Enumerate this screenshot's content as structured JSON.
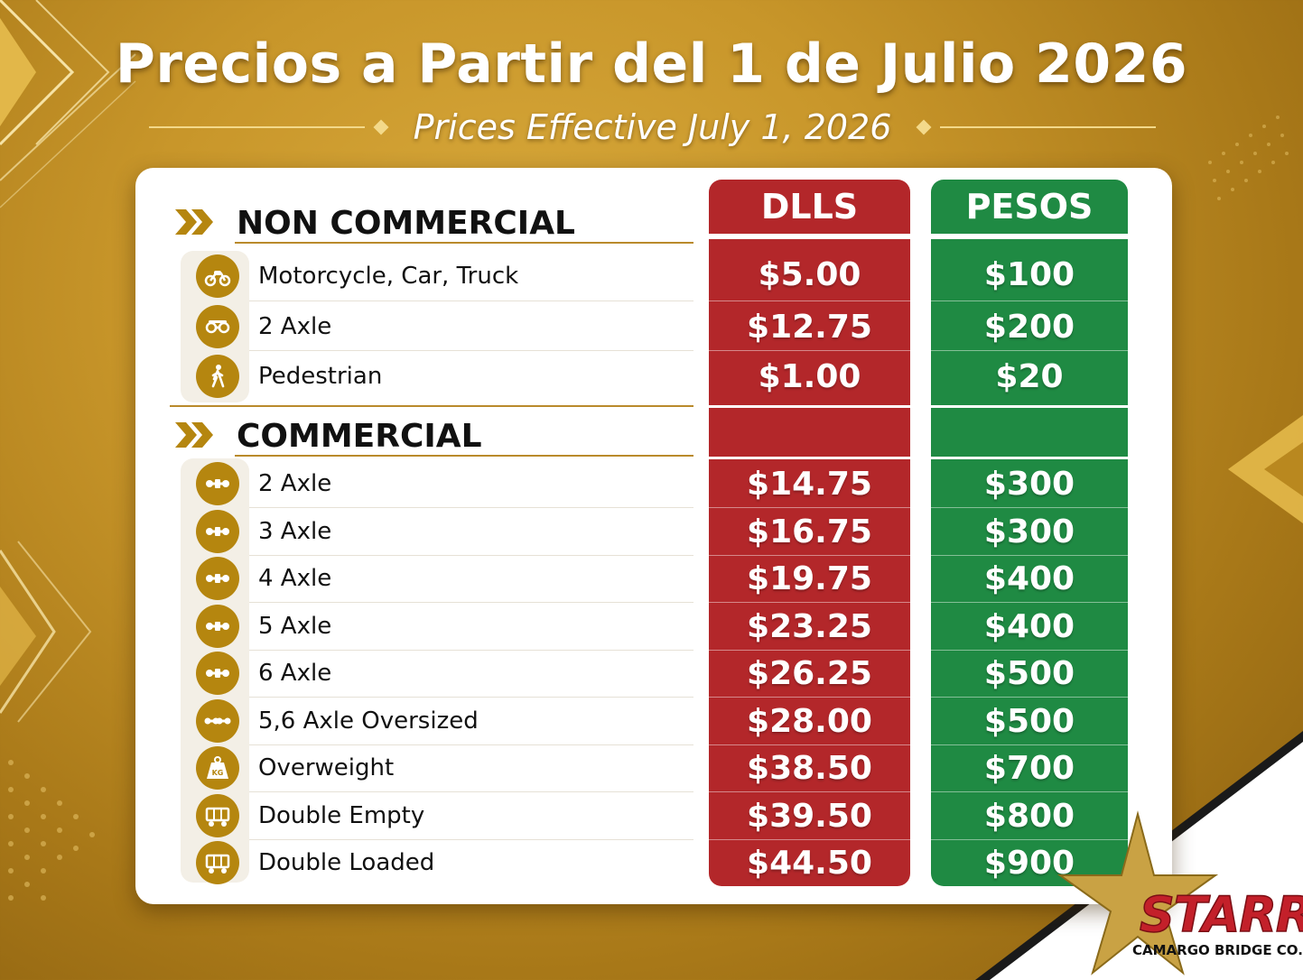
{
  "header": {
    "title": "Precios a Partir del 1 de Julio 2026",
    "subtitle": "Prices Effective July 1, 2026"
  },
  "columns": {
    "usd": "DLLS",
    "mxn": "PESOS"
  },
  "colors": {
    "background_gold": "#c8962a",
    "usd_column": "#b3272a",
    "mxn_column": "#1f8a43",
    "icon_gold": "#b5860f",
    "logo_red": "#c3202a"
  },
  "sections": {
    "non_commercial": {
      "label": "NON COMMERCIAL",
      "rows": [
        {
          "icon": "motorcycle-icon",
          "label": "Motorcycle, Car, Truck",
          "usd": "$5.00",
          "mxn": "$100"
        },
        {
          "icon": "axle-icon",
          "label": "2 Axle",
          "usd": "$12.75",
          "mxn": "$200"
        },
        {
          "icon": "pedestrian-icon",
          "label": "Pedestrian",
          "usd": "$1.00",
          "mxn": "$20"
        }
      ]
    },
    "commercial": {
      "label": "COMMERCIAL",
      "rows": [
        {
          "icon": "truck-axle-icon",
          "label": "2 Axle",
          "usd": "$14.75",
          "mxn": "$300"
        },
        {
          "icon": "truck-axle-icon",
          "label": "3 Axle",
          "usd": "$16.75",
          "mxn": "$300"
        },
        {
          "icon": "truck-axle-icon",
          "label": "4 Axle",
          "usd": "$19.75",
          "mxn": "$400"
        },
        {
          "icon": "truck-axle-icon",
          "label": "5 Axle",
          "usd": "$23.25",
          "mxn": "$400"
        },
        {
          "icon": "truck-axle-icon",
          "label": "6 Axle",
          "usd": "$26.25",
          "mxn": "$500"
        },
        {
          "icon": "oversized-axle-icon",
          "label": "5,6 Axle Oversized",
          "usd": "$28.00",
          "mxn": "$500"
        },
        {
          "icon": "weight-kg-icon",
          "label": "Overweight",
          "usd": "$38.50",
          "mxn": "$700"
        },
        {
          "icon": "trailer-icon",
          "label": "Double Empty",
          "usd": "$39.50",
          "mxn": "$800"
        },
        {
          "icon": "trailer-icon",
          "label": "Double Loaded",
          "usd": "$44.50",
          "mxn": "$900"
        }
      ]
    }
  },
  "logo": {
    "name": "STARR",
    "tagline": "CAMARGO BRIDGE CO.",
    "icon": "star-icon"
  }
}
